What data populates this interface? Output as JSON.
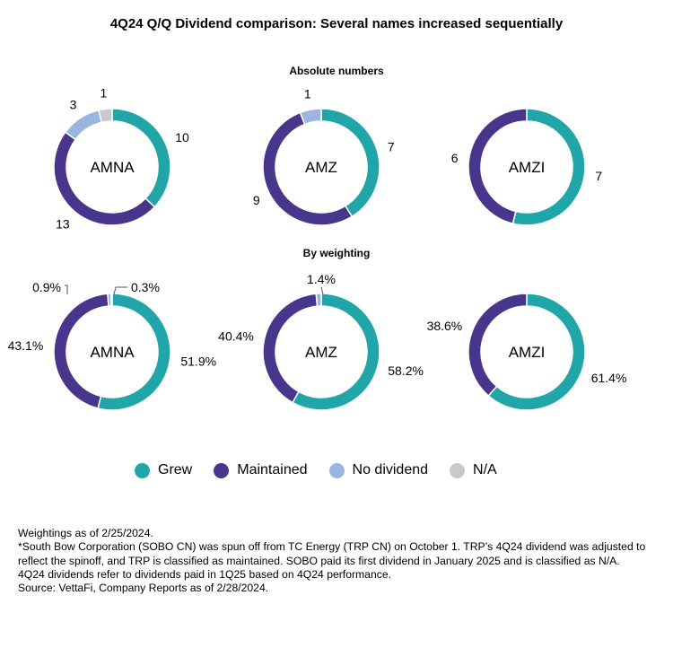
{
  "title": "4Q24 Q/Q Dividend comparison: Several names increased sequentially",
  "sections": {
    "absolute": "Absolute numbers",
    "weighting": "By weighting"
  },
  "colors": {
    "Grew": "#20a6a9",
    "Maintained": "#48368d",
    "No dividend": "#9ab6e0",
    "N/A": "#c9c9c9"
  },
  "legend": [
    {
      "label": "Grew",
      "color": "#20a6a9"
    },
    {
      "label": "Maintained",
      "color": "#48368d"
    },
    {
      "label": "No dividend",
      "color": "#9ab6e0"
    },
    {
      "label": "N/A",
      "color": "#c9c9c9"
    }
  ],
  "chart_data": [
    {
      "type": "pie",
      "group": "Absolute numbers",
      "name": "AMNA",
      "slices": [
        {
          "category": "Grew",
          "value": 10,
          "label": "10"
        },
        {
          "category": "Maintained",
          "value": 13,
          "label": "13"
        },
        {
          "category": "No dividend",
          "value": 3,
          "label": "3"
        },
        {
          "category": "N/A",
          "value": 1,
          "label": "1"
        }
      ]
    },
    {
      "type": "pie",
      "group": "Absolute numbers",
      "name": "AMZ",
      "slices": [
        {
          "category": "Grew",
          "value": 7,
          "label": "7"
        },
        {
          "category": "Maintained",
          "value": 9,
          "label": "9"
        },
        {
          "category": "No dividend",
          "value": 1,
          "label": "1"
        }
      ]
    },
    {
      "type": "pie",
      "group": "Absolute numbers",
      "name": "AMZI",
      "slices": [
        {
          "category": "Grew",
          "value": 7,
          "label": "7"
        },
        {
          "category": "Maintained",
          "value": 6,
          "label": "6"
        }
      ]
    },
    {
      "type": "pie",
      "group": "By weighting",
      "name": "AMNA",
      "slices": [
        {
          "category": "Grew",
          "value": 51.9,
          "label": "51.9%"
        },
        {
          "category": "Maintained",
          "value": 43.1,
          "label": "43.1%"
        },
        {
          "category": "No dividend",
          "value": 0.9,
          "label": "0.9%"
        },
        {
          "category": "N/A",
          "value": 0.3,
          "label": "0.3%"
        }
      ]
    },
    {
      "type": "pie",
      "group": "By weighting",
      "name": "AMZ",
      "slices": [
        {
          "category": "Grew",
          "value": 58.2,
          "label": "58.2%"
        },
        {
          "category": "Maintained",
          "value": 40.4,
          "label": "40.4%"
        },
        {
          "category": "No dividend",
          "value": 1.4,
          "label": "1.4%"
        }
      ]
    },
    {
      "type": "pie",
      "group": "By weighting",
      "name": "AMZI",
      "slices": [
        {
          "category": "Grew",
          "value": 61.4,
          "label": "61.4%"
        },
        {
          "category": "Maintained",
          "value": 38.6,
          "label": "38.6%"
        }
      ]
    }
  ],
  "notes": [
    "Weightings as of 2/25/2024.",
    "*South Bow Corporation (SOBO CN) was spun off from TC Energy (TRP CN) on October 1. TRP’s 4Q24 dividend was adjusted to reflect the spinoff, and TRP is classified as maintained. SOBO paid its first dividend in January 2025 and is classified as N/A.",
    "4Q24 dividends refer to dividends paid in 1Q25 based on 4Q24 performance.",
    "Source: VettaFi, Company Reports as of 2/28/2024."
  ]
}
